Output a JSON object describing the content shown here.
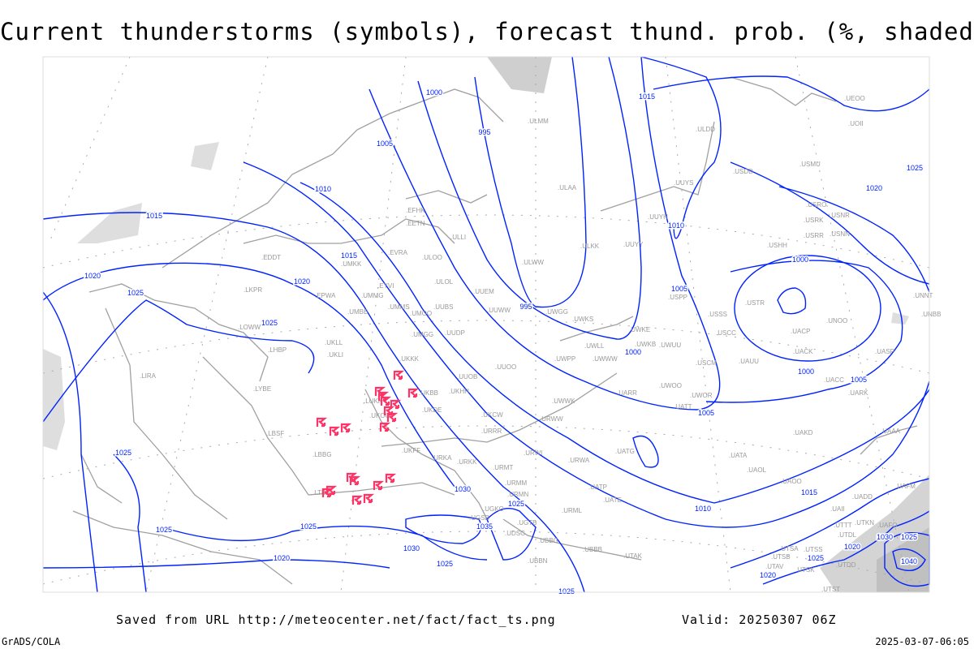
{
  "title": "Current thunderstorms (symbols), forecast thund. prob. (%, shaded)",
  "footer": {
    "saved_from": "Saved from URL http://meteocenter.net/fact/fact_ts.png",
    "valid": "Valid: 20250307 06Z",
    "software": "GrADS/COLA",
    "timestamp": "2025-03-07-06:05"
  },
  "colors": {
    "isobar": "#0022ff",
    "station": "#999999",
    "coast": "#a0a0a0",
    "thunderstorm": "#ff3366",
    "shading": "#dddddd"
  },
  "legend_symbols": {
    "thunderstorm": "thunderstorm-symbol-icon"
  },
  "stations": [
    "EDDT",
    "LKPR",
    "EPWA",
    "UMMG",
    "UMBB",
    "EYVI",
    "UMMS",
    "UMOO",
    "UUBS",
    "ULOL",
    "EVRA",
    "ULOO",
    "UMKK",
    "EFHK",
    "EETN",
    "ULLI",
    "ULKK",
    "ULWW",
    "UUEM",
    "UUWW",
    "UWGG",
    "UWKS",
    "UWPP",
    "UUOO",
    "UUOB",
    "UUDP",
    "UMGG",
    "UKLL",
    "UKLI",
    "LHBP",
    "LOWW",
    "LYBE",
    "UKKK",
    "UKBB",
    "LIRA",
    "LBSF",
    "LBBG",
    "LTBA",
    "LUKK",
    "UKOO",
    "UKDE",
    "UKHH",
    "UKCW",
    "URRR",
    "UKFF",
    "URKA",
    "URKK",
    "URWI",
    "URMT",
    "URMM",
    "URMN",
    "UGKO",
    "UGSB",
    "UGTB",
    "UDSG",
    "UBBG",
    "UBBB",
    "UBBN",
    "URWW",
    "UWWK",
    "URWA",
    "UATP",
    "UATE",
    "URML",
    "UTAK",
    "ULAA",
    "ULMM",
    "ULDD",
    "USDD",
    "USMU",
    "UUYS",
    "UUYH",
    "UUYY",
    "USRO",
    "USNR",
    "USRK",
    "USRR",
    "USNN",
    "USHH",
    "UEOO",
    "UOII",
    "USPP",
    "USTR",
    "USSS",
    "USCC",
    "UNOO",
    "UACP",
    "UACK",
    "UASP",
    "UNNT",
    "UNBB",
    "UWKE",
    "UWKB",
    "UWUU",
    "UWLL",
    "UWWW",
    "USCM",
    "UAUU",
    "UACC",
    "UARK",
    "UARR",
    "UWOO",
    "UWOR",
    "UATT",
    "UAKD",
    "UATG",
    "UATA",
    "UAAA",
    "UAOL",
    "UAOO",
    "UADD",
    "UAFM",
    "UAII",
    "UTTT",
    "UTKN",
    "UAFO",
    "UTDL",
    "UTSA",
    "UTSB",
    "UTSS",
    "UTAV",
    "UTSK",
    "UTDD",
    "UTST"
  ],
  "isobar_labels": [
    "1000",
    "995",
    "1005",
    "1015",
    "1010",
    "1015",
    "1015",
    "1020",
    "1020",
    "1025",
    "1025",
    "995",
    "1010",
    "1020",
    "1025",
    "1000",
    "1005",
    "1000",
    "1000",
    "1005",
    "1005",
    "1025",
    "1025",
    "1025",
    "1020",
    "1030",
    "1025",
    "1035",
    "1030",
    "1025",
    "1010",
    "1015",
    "1020",
    "1025",
    "1030",
    "1025",
    "1040",
    "1020",
    "1025"
  ]
}
